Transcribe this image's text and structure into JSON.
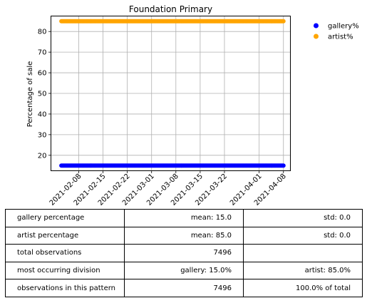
{
  "chart_data": {
    "type": "scatter",
    "title": "Foundation Primary",
    "xlabel": "",
    "ylabel": "Percentage of sale",
    "x_range": [
      "2021-02-03",
      "2021-04-08"
    ],
    "ylim": [
      12.5,
      87.5
    ],
    "yticks": [
      20,
      30,
      40,
      50,
      60,
      70,
      80
    ],
    "xticks": [
      "2021-02-08",
      "2021-02-15",
      "2021-02-22",
      "2021-03-01",
      "2021-03-08",
      "2021-03-15",
      "2021-03-22",
      "2021-04-01",
      "2021-04-08"
    ],
    "grid": true,
    "legend_position": "outside-top-right",
    "series": [
      {
        "name": "gallery%",
        "color": "#0000ff",
        "value": 15.0,
        "x_start": "2021-02-03",
        "x_end": "2021-04-08"
      },
      {
        "name": "artist%",
        "color": "#ffa500",
        "value": 85.0,
        "x_start": "2021-02-03",
        "x_end": "2021-04-08"
      }
    ]
  },
  "table": {
    "rows": [
      [
        "gallery percentage",
        "mean: 15.0",
        "std: 0.0"
      ],
      [
        "artist percentage",
        "mean: 85.0",
        "std: 0.0"
      ],
      [
        "total observations",
        "7496",
        ""
      ],
      [
        "most occurring division",
        "gallery: 15.0%",
        "artist: 85.0%"
      ],
      [
        "observations in this pattern",
        "7496",
        "100.0% of total"
      ]
    ]
  }
}
